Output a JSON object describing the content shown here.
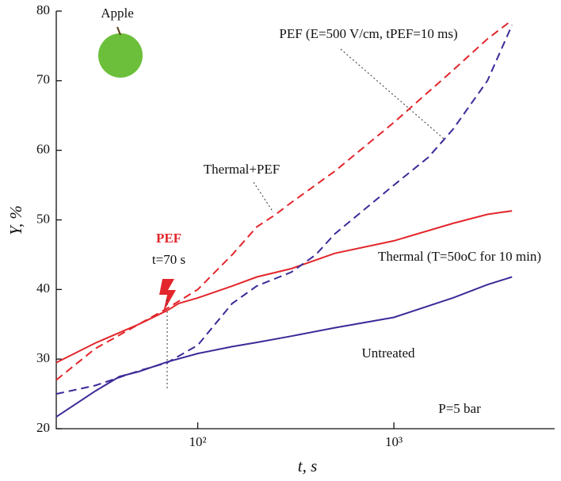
{
  "chart_data": {
    "type": "line",
    "x_label": "t, s",
    "y_label": "Y, %",
    "xlim": [
      19,
      6600
    ],
    "ylim": [
      20,
      80
    ],
    "x_log": true,
    "xticks": [
      {
        "value": 100,
        "label": "10²"
      },
      {
        "value": 1000,
        "label": "10³"
      }
    ],
    "yticks": [
      20,
      30,
      40,
      50,
      60,
      70,
      80
    ],
    "annotations": [
      "Apple",
      "PEF",
      "t=70 s",
      "P=5 bar"
    ],
    "series": [
      {
        "name": "Thermal (T=50oC for 10 min)",
        "color": "#e3262b",
        "dashed": false,
        "x": [
          19,
          30,
          50,
          70,
          80,
          100,
          150,
          200,
          300,
          500,
          1000,
          2000,
          3000,
          4000
        ],
        "values": [
          29.5,
          32.3,
          35,
          37,
          38,
          38.8,
          40.5,
          41.8,
          43,
          45.2,
          47,
          49.5,
          50.8,
          51.3
        ]
      },
      {
        "name": "Thermal+PEF",
        "color": "#e3262b",
        "dashed": true,
        "x": [
          19,
          30,
          50,
          70,
          100,
          150,
          200,
          250,
          300,
          500,
          1000,
          2000,
          3000,
          4000
        ],
        "values": [
          27,
          31.5,
          35,
          37.3,
          40,
          45,
          49,
          50.8,
          52.5,
          57,
          64,
          71.5,
          76,
          78.7
        ]
      },
      {
        "name": "PEF (E=500 V/cm, tPEF=10 ms)",
        "color": "#3b2b98",
        "dashed": true,
        "x": [
          19,
          30,
          50,
          70,
          100,
          150,
          200,
          300,
          400,
          500,
          1000,
          1500,
          2000,
          3000,
          4000
        ],
        "values": [
          25,
          26.2,
          28.3,
          29.5,
          32,
          38,
          40.5,
          42.5,
          45,
          48,
          55,
          59,
          63,
          70,
          78
        ]
      },
      {
        "name": "Untreated",
        "color": "#3b2b98",
        "dashed": false,
        "x": [
          19,
          30,
          40,
          50,
          70,
          100,
          150,
          200,
          300,
          500,
          1000,
          2000,
          3000,
          4000
        ],
        "values": [
          21.7,
          25.4,
          27.5,
          28.2,
          29.6,
          30.8,
          31.8,
          32.4,
          33.3,
          34.5,
          36,
          38.8,
          40.7,
          41.8
        ]
      }
    ]
  }
}
